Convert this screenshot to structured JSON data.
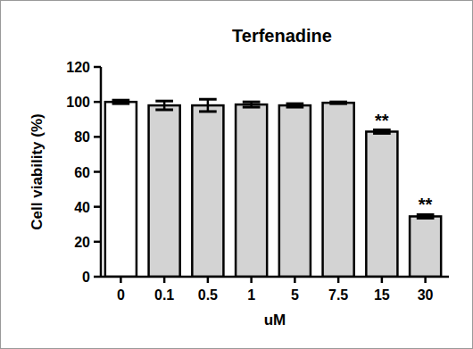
{
  "chart_data": {
    "type": "bar",
    "title": "Terfenadine",
    "x_label": "uM",
    "y_label": "Cell viability (%)",
    "categories": [
      "0",
      "0.1",
      "0.5",
      "1",
      "5",
      "7.5",
      "15",
      "30"
    ],
    "values": [
      100,
      98,
      98,
      98.5,
      98,
      99.5,
      83,
      34.5
    ],
    "errors": [
      1,
      2.5,
      3.5,
      1.5,
      1,
      0.5,
      1,
      1
    ],
    "colors": [
      "#ffffff",
      "#d3d3d3",
      "#d3d3d3",
      "#d3d3d3",
      "#d3d3d3",
      "#d3d3d3",
      "#d3d3d3",
      "#d3d3d3"
    ],
    "annotations": [
      {
        "text": "**",
        "category": "15"
      },
      {
        "text": "**",
        "category": "30"
      }
    ],
    "ylim": [
      0,
      120
    ],
    "yticks": [
      0,
      20,
      40,
      60,
      80,
      100,
      120
    ],
    "grid": false
  }
}
